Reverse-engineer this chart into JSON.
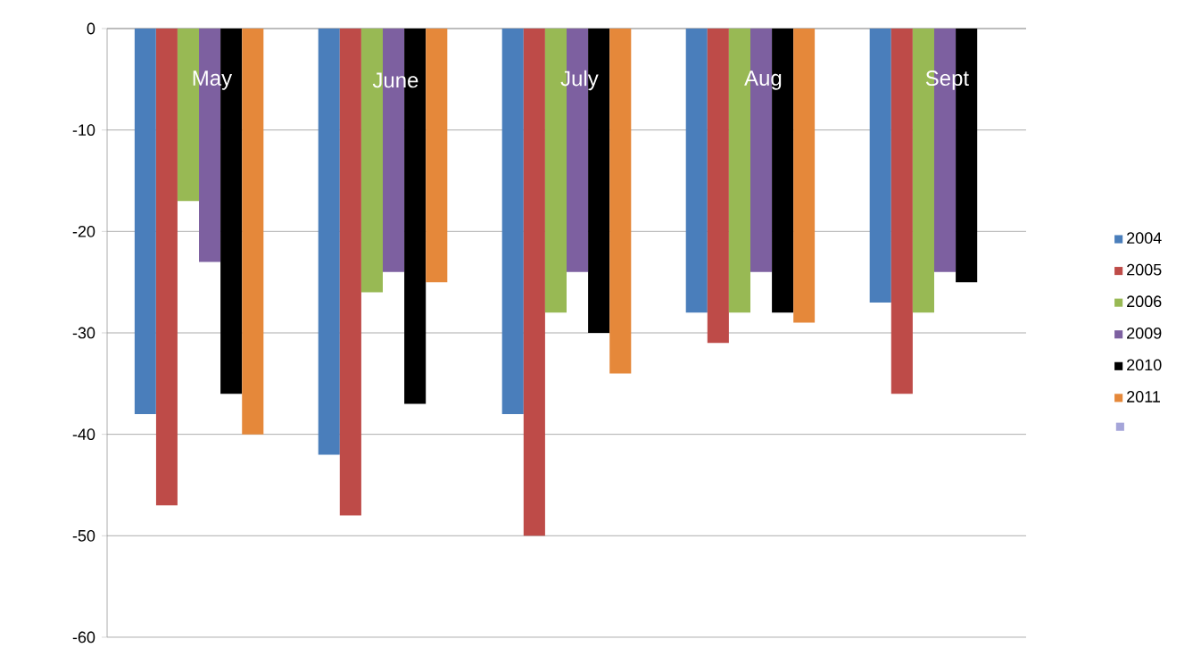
{
  "chart_data": {
    "type": "bar",
    "categories": [
      "May",
      "June",
      "July",
      "Aug",
      "Sept"
    ],
    "series": [
      {
        "name": "2004",
        "color": "#4a7ebb",
        "values": [
          -38,
          -42,
          -38,
          -28,
          -27
        ]
      },
      {
        "name": "2005",
        "color": "#be4b48",
        "values": [
          -47,
          -48,
          -50,
          -31,
          -36
        ]
      },
      {
        "name": "2006",
        "color": "#98b954",
        "values": [
          -17,
          -26,
          -28,
          -28,
          -28
        ]
      },
      {
        "name": "2009",
        "color": "#7d60a0",
        "values": [
          -23,
          -24,
          -24,
          -24,
          -24
        ]
      },
      {
        "name": "2010",
        "color": "#000000",
        "values": [
          -36,
          -37,
          -30,
          -28,
          -25
        ]
      },
      {
        "name": "2011",
        "color": "#e5883a",
        "values": [
          -40,
          -25,
          -34,
          -29,
          null
        ]
      },
      {
        "color": "#a5a5d9",
        "values": [
          null,
          null,
          null,
          null,
          null
        ]
      }
    ],
    "ylim": [
      -60,
      0
    ],
    "yticks": [
      -60,
      -50,
      -40,
      -30,
      -20,
      -10,
      0
    ],
    "grid": "y",
    "legend": "right"
  }
}
